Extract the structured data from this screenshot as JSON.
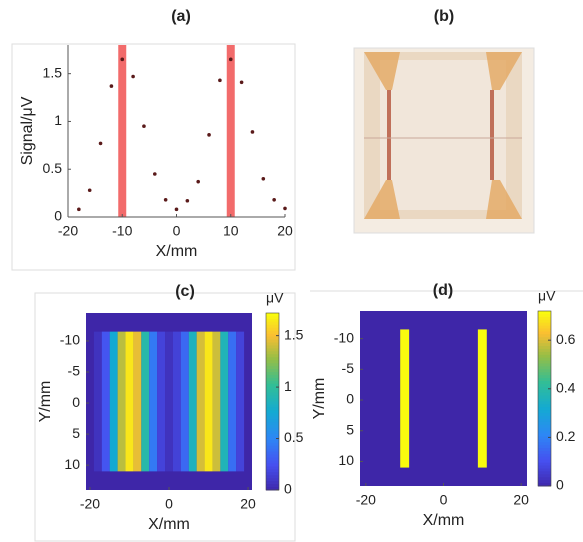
{
  "chart_data": [
    {
      "type": "scatter",
      "title": "(a)",
      "xlabel": "X/mm",
      "ylabel": "Signal/μV",
      "x": [
        -18,
        -16,
        -14,
        -12,
        -10,
        -8,
        -6,
        -4,
        -2,
        0,
        2,
        4,
        6,
        8,
        10,
        12,
        14,
        16,
        18,
        20
      ],
      "values": [
        0.08,
        0.28,
        0.77,
        1.37,
        1.65,
        1.47,
        0.95,
        0.45,
        0.18,
        0.08,
        0.17,
        0.37,
        0.86,
        1.43,
        1.65,
        1.41,
        0.89,
        0.4,
        0.18,
        0.09
      ],
      "color": "#5a1a1a",
      "highlight_x": [
        -10,
        10
      ],
      "highlight_color": "#f26b6b",
      "xlim": [
        -20,
        20
      ],
      "xticks": [
        -20,
        -10,
        0,
        10,
        20
      ],
      "ylim": [
        0,
        1.8
      ],
      "yticks": [
        0,
        0.5,
        1,
        1.5
      ]
    },
    {
      "type": "image",
      "title": "(b)"
    },
    {
      "type": "heatmap",
      "title": "(c)",
      "xlabel": "X/mm",
      "ylabel": "Y/mm",
      "colormap": "parula",
      "columns": {
        "x": [
          -18,
          -16,
          -14,
          -12,
          -10,
          -8,
          -6,
          -4,
          -2,
          0,
          2,
          4,
          6,
          8,
          10,
          12,
          14,
          16,
          18
        ],
        "values": [
          0.08,
          0.28,
          0.77,
          1.37,
          1.65,
          1.47,
          0.95,
          0.45,
          0.18,
          0.08,
          0.17,
          0.37,
          0.86,
          1.43,
          1.65,
          1.41,
          0.89,
          0.4,
          0.18
        ]
      },
      "column_width": 2,
      "y_extent": [
        -11.5,
        11
      ],
      "background": 0,
      "xlim": [
        -21,
        21
      ],
      "xticks": [
        -20,
        0,
        20
      ],
      "ylim": [
        -14.5,
        14
      ],
      "yticks": [
        -10,
        -5,
        0,
        5,
        10
      ],
      "clim": [
        0,
        1.72
      ],
      "cticks": [
        0,
        0.5,
        1,
        1.5
      ],
      "clabel": "μV"
    },
    {
      "type": "heatmap",
      "title": "(d)",
      "xlabel": "X/mm",
      "ylabel": "Y/mm",
      "colormap": "parula",
      "columns": {
        "x": [
          -10,
          10
        ],
        "values": [
          0.72,
          0.72
        ]
      },
      "column_width": 2.3,
      "y_extent": [
        -11.5,
        11
      ],
      "background": 0,
      "xlim": [
        -21.5,
        21.5
      ],
      "xticks": [
        -20,
        0,
        20
      ],
      "ylim": [
        -14.5,
        14
      ],
      "yticks": [
        -10,
        -5,
        0,
        5,
        10
      ],
      "clim": [
        0,
        0.72
      ],
      "cticks": [
        0,
        0.2,
        0.4,
        0.6
      ],
      "clabel": "μV"
    }
  ]
}
